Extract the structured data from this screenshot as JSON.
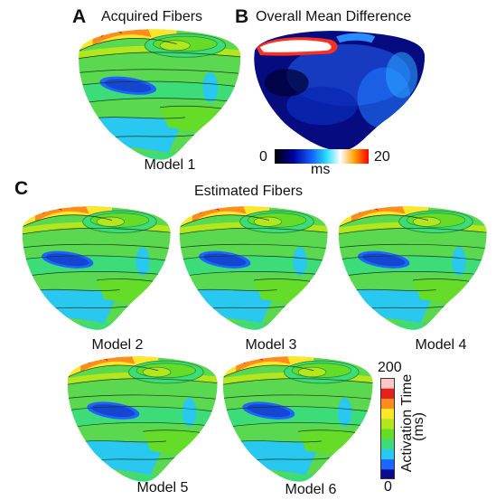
{
  "panels": {
    "a": {
      "letter": "A",
      "title": "Acquired Fibers",
      "caption": "Model 1"
    },
    "b": {
      "letter": "B",
      "title": "Overall Mean Difference",
      "colorbar": {
        "min": "0",
        "max": "20",
        "unit": "ms"
      }
    },
    "c": {
      "letter": "C",
      "title": "Estimated Fibers",
      "models": [
        "Model 2",
        "Model 3",
        "Model 4",
        "Model 5",
        "Model 6"
      ],
      "colorbar": {
        "max": "200",
        "min": "0",
        "label": "Activation Time",
        "unit": "(ms)"
      }
    }
  },
  "colors": {
    "activation_scale": [
      "#0a0a8c",
      "#1e64ff",
      "#28c8f0",
      "#3cdc78",
      "#64dc28",
      "#b4e61e",
      "#ffe628",
      "#ff8c1e",
      "#e61e1e",
      "#ffc8c8"
    ],
    "difference_scale": [
      "#000000",
      "#0000a0",
      "#1464ff",
      "#28dcff",
      "#ffffff",
      "#ffa000",
      "#ff0000"
    ]
  }
}
